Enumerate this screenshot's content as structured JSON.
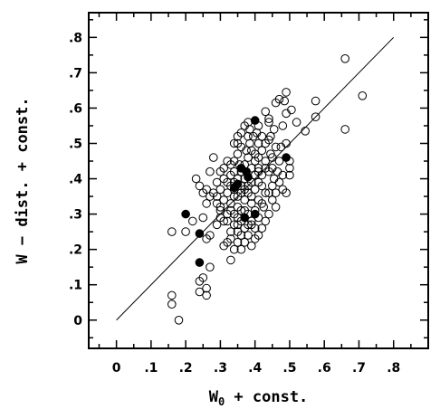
{
  "chart_data": {
    "type": "scatter",
    "xlabel": "W",
    "xlabel_subscript": "0",
    "xlabel_suffix": " + const.",
    "ylabel": "W − dist. + const.",
    "xlim": [
      -0.08,
      0.9
    ],
    "ylim": [
      -0.08,
      0.87
    ],
    "x_ticks": [
      0,
      0.1,
      0.2,
      0.3,
      0.4,
      0.5,
      0.6,
      0.7,
      0.8
    ],
    "x_tick_labels": [
      "0",
      ".1",
      ".2",
      ".3",
      ".4",
      ".5",
      ".6",
      ".7",
      ".8"
    ],
    "y_ticks": [
      0,
      0.1,
      0.2,
      0.3,
      0.4,
      0.5,
      0.6,
      0.7,
      0.8
    ],
    "y_tick_labels": [
      "0",
      ".1",
      ".2",
      ".3",
      ".4",
      ".5",
      ".6",
      ".7",
      ".8"
    ],
    "grid": false,
    "legend": "none",
    "reference_line": {
      "x": [
        0,
        0.8
      ],
      "y": [
        0,
        0.8
      ]
    },
    "series": [
      {
        "marker": "open-circle",
        "points": [
          [
            0.66,
            0.74
          ],
          [
            0.71,
            0.635
          ],
          [
            0.66,
            0.54
          ],
          [
            0.575,
            0.62
          ],
          [
            0.575,
            0.575
          ],
          [
            0.545,
            0.535
          ],
          [
            0.49,
            0.645
          ],
          [
            0.485,
            0.62
          ],
          [
            0.49,
            0.585
          ],
          [
            0.505,
            0.595
          ],
          [
            0.52,
            0.56
          ],
          [
            0.47,
            0.625
          ],
          [
            0.46,
            0.615
          ],
          [
            0.48,
            0.55
          ],
          [
            0.455,
            0.54
          ],
          [
            0.445,
            0.52
          ],
          [
            0.43,
            0.5
          ],
          [
            0.46,
            0.49
          ],
          [
            0.445,
            0.47
          ],
          [
            0.475,
            0.49
          ],
          [
            0.5,
            0.45
          ],
          [
            0.5,
            0.43
          ],
          [
            0.5,
            0.41
          ],
          [
            0.49,
            0.36
          ],
          [
            0.47,
            0.39
          ],
          [
            0.465,
            0.42
          ],
          [
            0.455,
            0.4
          ],
          [
            0.48,
            0.37
          ],
          [
            0.45,
            0.38
          ],
          [
            0.44,
            0.36
          ],
          [
            0.45,
            0.34
          ],
          [
            0.46,
            0.32
          ],
          [
            0.44,
            0.3
          ],
          [
            0.425,
            0.32
          ],
          [
            0.43,
            0.45
          ],
          [
            0.42,
            0.48
          ],
          [
            0.41,
            0.5
          ],
          [
            0.405,
            0.53
          ],
          [
            0.41,
            0.55
          ],
          [
            0.395,
            0.52
          ],
          [
            0.385,
            0.54
          ],
          [
            0.37,
            0.55
          ],
          [
            0.36,
            0.53
          ],
          [
            0.38,
            0.56
          ],
          [
            0.385,
            0.5
          ],
          [
            0.375,
            0.48
          ],
          [
            0.36,
            0.49
          ],
          [
            0.35,
            0.5
          ],
          [
            0.35,
            0.47
          ],
          [
            0.34,
            0.45
          ],
          [
            0.355,
            0.44
          ],
          [
            0.37,
            0.44
          ],
          [
            0.39,
            0.43
          ],
          [
            0.4,
            0.45
          ],
          [
            0.41,
            0.46
          ],
          [
            0.4,
            0.41
          ],
          [
            0.41,
            0.39
          ],
          [
            0.42,
            0.41
          ],
          [
            0.42,
            0.38
          ],
          [
            0.4,
            0.37
          ],
          [
            0.39,
            0.39
          ],
          [
            0.38,
            0.36
          ],
          [
            0.37,
            0.4
          ],
          [
            0.36,
            0.38
          ],
          [
            0.35,
            0.4
          ],
          [
            0.34,
            0.42
          ],
          [
            0.33,
            0.41
          ],
          [
            0.33,
            0.38
          ],
          [
            0.32,
            0.36
          ],
          [
            0.34,
            0.37
          ],
          [
            0.35,
            0.35
          ],
          [
            0.37,
            0.34
          ],
          [
            0.39,
            0.33
          ],
          [
            0.41,
            0.34
          ],
          [
            0.43,
            0.36
          ],
          [
            0.42,
            0.33
          ],
          [
            0.4,
            0.31
          ],
          [
            0.38,
            0.3
          ],
          [
            0.36,
            0.31
          ],
          [
            0.35,
            0.32
          ],
          [
            0.34,
            0.3
          ],
          [
            0.33,
            0.31
          ],
          [
            0.32,
            0.3
          ],
          [
            0.32,
            0.28
          ],
          [
            0.34,
            0.27
          ],
          [
            0.36,
            0.28
          ],
          [
            0.37,
            0.26
          ],
          [
            0.38,
            0.27
          ],
          [
            0.39,
            0.28
          ],
          [
            0.4,
            0.26
          ],
          [
            0.41,
            0.24
          ],
          [
            0.4,
            0.23
          ],
          [
            0.38,
            0.24
          ],
          [
            0.36,
            0.24
          ],
          [
            0.35,
            0.22
          ],
          [
            0.33,
            0.23
          ],
          [
            0.32,
            0.22
          ],
          [
            0.31,
            0.21
          ],
          [
            0.33,
            0.17
          ],
          [
            0.37,
            0.22
          ],
          [
            0.39,
            0.27
          ],
          [
            0.35,
            0.27
          ],
          [
            0.3,
            0.29
          ],
          [
            0.29,
            0.27
          ],
          [
            0.3,
            0.31
          ],
          [
            0.29,
            0.33
          ],
          [
            0.29,
            0.35
          ],
          [
            0.3,
            0.37
          ],
          [
            0.31,
            0.4
          ],
          [
            0.31,
            0.43
          ],
          [
            0.32,
            0.45
          ],
          [
            0.28,
            0.46
          ],
          [
            0.27,
            0.42
          ],
          [
            0.29,
            0.39
          ],
          [
            0.28,
            0.36
          ],
          [
            0.27,
            0.35
          ],
          [
            0.26,
            0.37
          ],
          [
            0.26,
            0.33
          ],
          [
            0.25,
            0.36
          ],
          [
            0.24,
            0.38
          ],
          [
            0.23,
            0.4
          ],
          [
            0.22,
            0.28
          ],
          [
            0.2,
            0.25
          ],
          [
            0.16,
            0.25
          ],
          [
            0.25,
            0.29
          ],
          [
            0.26,
            0.23
          ],
          [
            0.27,
            0.24
          ],
          [
            0.27,
            0.15
          ],
          [
            0.25,
            0.12
          ],
          [
            0.24,
            0.11
          ],
          [
            0.26,
            0.09
          ],
          [
            0.26,
            0.07
          ],
          [
            0.24,
            0.08
          ],
          [
            0.16,
            0.07
          ],
          [
            0.16,
            0.045
          ],
          [
            0.18,
            0.0
          ],
          [
            0.47,
            0.45
          ],
          [
            0.49,
            0.5
          ],
          [
            0.44,
            0.56
          ],
          [
            0.43,
            0.59
          ],
          [
            0.44,
            0.57
          ],
          [
            0.43,
            0.43
          ],
          [
            0.44,
            0.42
          ],
          [
            0.45,
            0.43
          ],
          [
            0.46,
            0.36
          ],
          [
            0.43,
            0.28
          ],
          [
            0.39,
            0.21
          ],
          [
            0.36,
            0.2
          ],
          [
            0.34,
            0.2
          ],
          [
            0.33,
            0.25
          ],
          [
            0.35,
            0.29
          ],
          [
            0.37,
            0.31
          ],
          [
            0.39,
            0.35
          ],
          [
            0.41,
            0.42
          ],
          [
            0.38,
            0.46
          ],
          [
            0.36,
            0.42
          ],
          [
            0.34,
            0.35
          ],
          [
            0.33,
            0.33
          ],
          [
            0.31,
            0.34
          ],
          [
            0.32,
            0.39
          ],
          [
            0.3,
            0.42
          ],
          [
            0.37,
            0.37
          ],
          [
            0.36,
            0.36
          ],
          [
            0.38,
            0.38
          ],
          [
            0.39,
            0.48
          ],
          [
            0.4,
            0.47
          ],
          [
            0.42,
            0.52
          ],
          [
            0.44,
            0.51
          ],
          [
            0.45,
            0.46
          ],
          [
            0.48,
            0.41
          ],
          [
            0.35,
            0.25
          ],
          [
            0.37,
            0.29
          ],
          [
            0.42,
            0.26
          ],
          [
            0.41,
            0.29
          ],
          [
            0.34,
            0.5
          ],
          [
            0.35,
            0.52
          ],
          [
            0.38,
            0.52
          ],
          [
            0.41,
            0.43
          ],
          [
            0.33,
            0.44
          ],
          [
            0.31,
            0.28
          ],
          [
            0.3,
            0.32
          ],
          [
            0.34,
            0.39
          ]
        ]
      },
      {
        "marker": "filled-circle",
        "points": [
          [
            0.4,
            0.565
          ],
          [
            0.49,
            0.46
          ],
          [
            0.36,
            0.43
          ],
          [
            0.375,
            0.42
          ],
          [
            0.35,
            0.385
          ],
          [
            0.38,
            0.405
          ],
          [
            0.34,
            0.375
          ],
          [
            0.2,
            0.3
          ],
          [
            0.4,
            0.3
          ],
          [
            0.37,
            0.29
          ],
          [
            0.24,
            0.245
          ],
          [
            0.24,
            0.163
          ]
        ]
      }
    ]
  }
}
